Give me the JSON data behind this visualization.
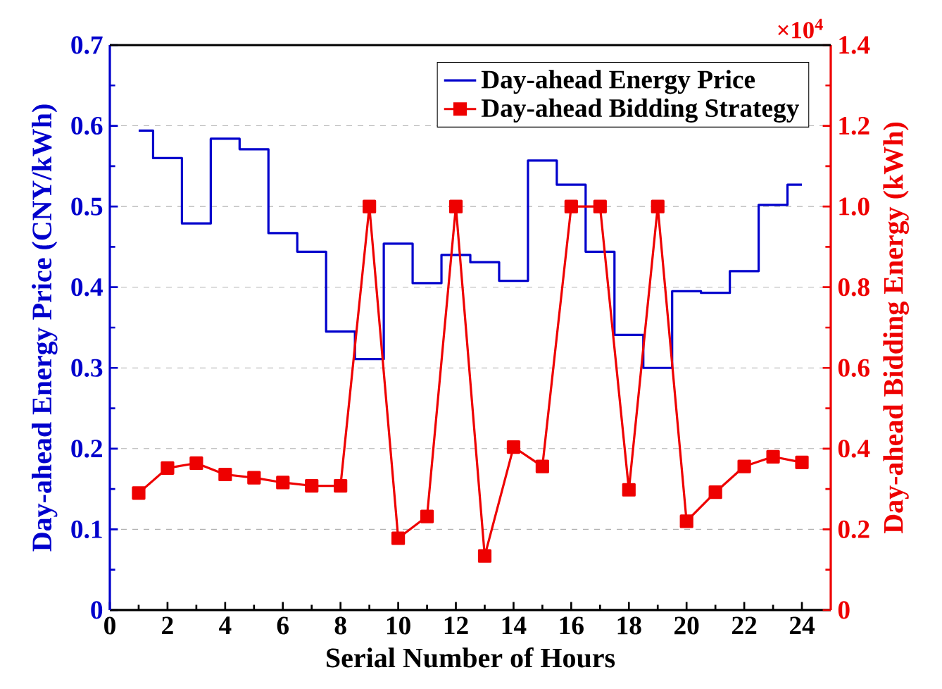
{
  "chart_data": {
    "type": "line",
    "xlabel": "Serial Number of Hours",
    "ylabel": "Day-ahead Energy Price (CNY/kWh)",
    "y2label": "Day-ahead Bidding Energy (kWh)",
    "x": [
      1,
      2,
      3,
      4,
      5,
      6,
      7,
      8,
      9,
      10,
      11,
      12,
      13,
      14,
      15,
      16,
      17,
      18,
      19,
      20,
      21,
      22,
      23,
      24
    ],
    "series": [
      {
        "name": "Day-ahead Energy Price",
        "type": "step",
        "color": "#0000cc",
        "marker": "none",
        "values": [
          0.594,
          0.56,
          0.479,
          0.584,
          0.571,
          0.467,
          0.444,
          0.345,
          0.311,
          0.454,
          0.405,
          0.44,
          0.431,
          0.408,
          0.557,
          0.527,
          0.444,
          0.341,
          0.3,
          0.395,
          0.393,
          0.42,
          0.502,
          0.527
        ]
      },
      {
        "name": "Day-ahead Bidding Strategy",
        "type": "line",
        "axis": "y2",
        "color": "#ee0000",
        "marker": "square",
        "values": [
          0.29,
          0.352,
          0.364,
          0.336,
          0.328,
          0.316,
          0.308,
          0.308,
          1.0,
          0.178,
          0.232,
          1.0,
          0.134,
          0.404,
          0.356,
          1.0,
          1.0,
          0.298,
          1.0,
          0.22,
          0.292,
          0.356,
          0.38,
          0.366
        ]
      }
    ],
    "xlim": [
      0,
      25
    ],
    "xticks": [
      0,
      2,
      4,
      6,
      8,
      10,
      12,
      14,
      16,
      18,
      20,
      22,
      24
    ],
    "ylim": [
      0,
      0.7
    ],
    "yticks": [
      0,
      0.1,
      0.2,
      0.3,
      0.4,
      0.5,
      0.6,
      0.7
    ],
    "y2lim": [
      0,
      1.4
    ],
    "y2ticks": [
      0,
      0.2,
      0.4,
      0.6,
      0.8,
      {
        "value": 1,
        "label": "1.0"
      },
      1.2,
      1.4
    ],
    "grid": "y",
    "legend": "top right",
    "annotations": [
      "×10$^{4}$"
    ]
  }
}
